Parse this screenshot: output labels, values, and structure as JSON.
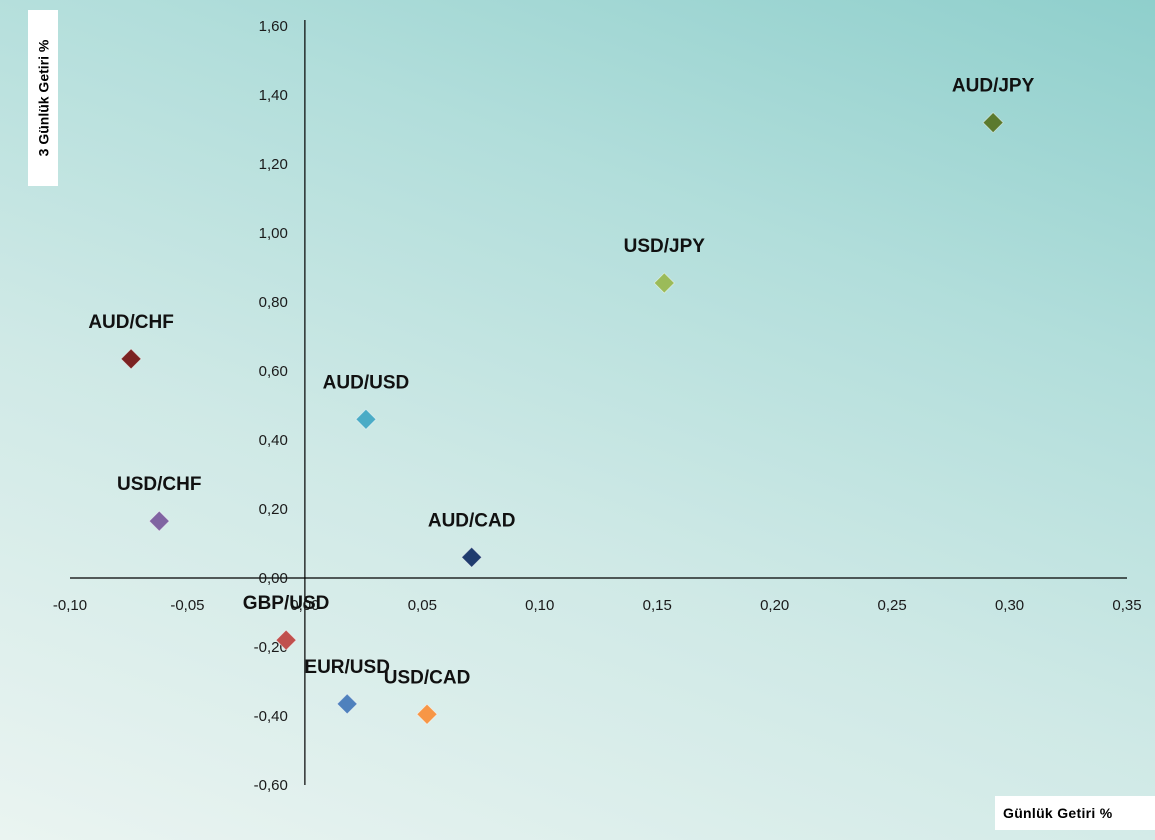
{
  "chart_data": {
    "type": "scatter",
    "title": "",
    "xlabel": "Günlük Getiri %",
    "ylabel": "3 Günlük Getiri %",
    "xlim": [
      -0.1,
      0.35
    ],
    "ylim": [
      -0.6,
      1.6
    ],
    "x_ticks": [
      "-0,10",
      "-0,05",
      "0,00",
      "0,05",
      "0,10",
      "0,15",
      "0,20",
      "0,25",
      "0,30",
      "0,35"
    ],
    "y_ticks": [
      "-0,60",
      "-0,40",
      "-0,20",
      "0,00",
      "0,20",
      "0,40",
      "0,60",
      "0,80",
      "1,00",
      "1,20",
      "1,40",
      "1,60"
    ],
    "grid": false,
    "marker": "diamond",
    "points": [
      {
        "label": "AUD/JPY",
        "x": 0.293,
        "y": 1.32,
        "color": "#5b7a2e"
      },
      {
        "label": "USD/JPY",
        "x": 0.153,
        "y": 0.855,
        "color": "#9bbb59"
      },
      {
        "label": "AUD/CHF",
        "x": -0.074,
        "y": 0.635,
        "color": "#7b2222"
      },
      {
        "label": "AUD/USD",
        "x": 0.026,
        "y": 0.46,
        "color": "#4bacc6"
      },
      {
        "label": "USD/CHF",
        "x": -0.062,
        "y": 0.165,
        "color": "#8064a2"
      },
      {
        "label": "AUD/CAD",
        "x": 0.071,
        "y": 0.06,
        "color": "#1f3c6e"
      },
      {
        "label": "GBP/USD",
        "x": -0.008,
        "y": -0.18,
        "color": "#c0504d"
      },
      {
        "label": "EUR/USD",
        "x": 0.018,
        "y": -0.365,
        "color": "#4f81bd"
      },
      {
        "label": "USD/CAD",
        "x": 0.052,
        "y": -0.395,
        "color": "#f79646"
      }
    ]
  }
}
